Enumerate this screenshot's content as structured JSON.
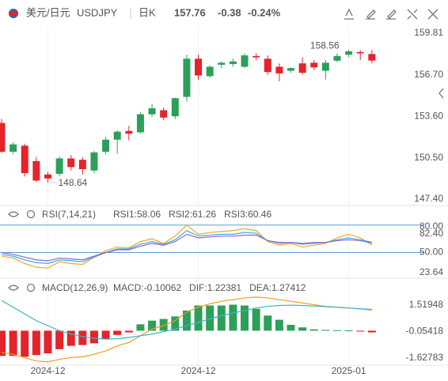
{
  "header": {
    "title": "美元/日元",
    "symbol": "USDJPY",
    "period": "日K",
    "price": "157.76",
    "change": "-0.38",
    "change_pct": "-0.24%",
    "title_color": "#e0552a",
    "quote_color": "#1f9d55"
  },
  "chart_data": [
    {
      "type": "candlestick",
      "up_color": "#2ca05a",
      "down_color": "#e5232a",
      "top_tick_color": "#e5232a",
      "categories": [
        null,
        null,
        null,
        null,
        "2024-12",
        null,
        null,
        null,
        null,
        null,
        null,
        null,
        null,
        null,
        null,
        null,
        null,
        "2024-12",
        null,
        null,
        null,
        null,
        null,
        null,
        null,
        null,
        null,
        null,
        null,
        null,
        "2025-01",
        null,
        null
      ],
      "open": [
        153.1,
        150.95,
        151.4,
        150.25,
        149.25,
        149.3,
        150.45,
        150.35,
        149.55,
        150.95,
        151.85,
        152.5,
        152.4,
        153.75,
        154.05,
        153.6,
        155.05,
        157.9,
        156.6,
        157.45,
        157.5,
        157.3,
        158.1,
        157.9,
        157.3,
        157.0,
        157.55,
        157.6,
        157.0,
        157.75,
        158.2,
        158.4,
        158.25
      ],
      "high": [
        153.4,
        151.65,
        151.55,
        150.55,
        149.45,
        150.6,
        150.7,
        150.55,
        151.0,
        152.05,
        152.55,
        152.9,
        153.9,
        154.5,
        154.25,
        155.0,
        158.2,
        158.2,
        157.4,
        157.7,
        157.9,
        158.3,
        158.3,
        158.15,
        157.55,
        157.25,
        158.0,
        157.8,
        157.8,
        158.3,
        158.56,
        158.55,
        158.55
      ],
      "low": [
        150.85,
        150.75,
        149.1,
        148.7,
        148.64,
        149.1,
        149.55,
        149.25,
        149.35,
        150.75,
        150.8,
        151.8,
        152.3,
        153.55,
        153.3,
        153.4,
        154.7,
        156.3,
        156.5,
        157.2,
        157.3,
        157.2,
        157.8,
        156.7,
        156.2,
        156.85,
        156.7,
        157.05,
        156.35,
        157.65,
        158.0,
        157.8,
        157.55
      ],
      "close": [
        150.95,
        151.5,
        149.35,
        148.8,
        148.95,
        150.45,
        149.8,
        149.65,
        150.9,
        151.85,
        152.45,
        152.3,
        153.75,
        154.2,
        153.5,
        154.95,
        157.9,
        156.65,
        157.3,
        157.6,
        157.7,
        158.15,
        158.0,
        156.9,
        156.8,
        157.2,
        156.85,
        157.25,
        157.6,
        158.1,
        158.45,
        158.3,
        157.76
      ],
      "annotations": [
        "158.56",
        "148.64"
      ],
      "ylim": [
        147.05,
        160.22
      ],
      "yticks": [
        159.81,
        {
          "value": 156.7,
          "label": "156.70"
        },
        {
          "value": 153.6,
          "label": "153.60"
        },
        {
          "value": 150.5,
          "label": "150.50"
        },
        {
          "value": 147.4,
          "label": "147.40"
        }
      ]
    },
    {
      "type": "line",
      "title": "RSI(7,14,21)",
      "level_color": "#5b9bd5",
      "levels": [
        80,
        50
      ],
      "series": [
        {
          "name": "RSI1:58.06",
          "color": "#f5a623",
          "values": [
            46,
            44,
            38,
            34,
            33,
            40,
            38,
            37,
            45,
            52,
            56,
            55,
            62,
            65,
            60,
            68,
            80,
            70,
            72,
            73,
            74,
            76,
            74,
            62,
            58,
            60,
            56,
            58,
            60,
            66,
            70,
            66,
            58.06
          ]
        },
        {
          "name": "RSI2:61.26",
          "color": "#3fa9f5",
          "values": [
            48,
            46,
            42,
            39,
            38,
            42,
            41,
            40,
            45,
            50,
            54,
            54,
            59,
            62,
            59,
            64,
            74,
            68,
            69,
            70,
            70,
            72,
            71,
            63,
            60,
            61,
            59,
            60,
            61,
            64,
            66,
            64,
            61.26
          ]
        },
        {
          "name": "RSI3:60.46",
          "color": "#8a6bbe",
          "values": [
            50,
            48,
            45,
            42,
            41,
            44,
            43,
            42,
            46,
            50,
            53,
            53,
            57,
            60,
            58,
            62,
            70,
            66,
            67,
            68,
            68,
            69,
            69,
            63,
            61,
            61,
            60,
            61,
            61,
            63,
            64,
            63,
            60.46
          ]
        }
      ],
      "ylim": [
        23.64,
        82.4
      ],
      "yticks": [
        {
          "value": 80,
          "label": "80.00"
        },
        {
          "value": 82.4,
          "label": "82.40"
        },
        {
          "value": 50,
          "label": "50.00"
        },
        23.64
      ]
    },
    {
      "type": "macd",
      "title": "MACD(12,26,9)",
      "up_color": "#2ca05a",
      "down_color": "#e5232a",
      "series": [
        {
          "name": "MACD:-0.10062",
          "color": "#a35fc2",
          "style": "bar",
          "values": [
            -1.5,
            -1.5,
            -1.55,
            -1.45,
            -1.35,
            -1.1,
            -0.9,
            -0.85,
            -0.75,
            -0.5,
            -0.25,
            -0.1,
            0.38,
            0.6,
            0.7,
            0.85,
            1.2,
            1.5,
            1.5,
            1.5,
            1.55,
            1.5,
            1.3,
            0.9,
            0.65,
            0.35,
            0.2,
            0.08,
            0.05,
            0.03,
            0.02,
            -0.05,
            -0.10062
          ]
        },
        {
          "name": "DIF:1.22381",
          "color": "#f39c12",
          "style": "line",
          "values": [
            -1.3,
            -1.4,
            -1.6,
            -1.8,
            -1.85,
            -1.7,
            -1.6,
            -1.55,
            -1.4,
            -1.2,
            -0.9,
            -0.7,
            -0.3,
            0.1,
            0.3,
            0.6,
            1.1,
            1.4,
            1.6,
            1.75,
            1.85,
            1.95,
            2.0,
            1.95,
            1.85,
            1.75,
            1.65,
            1.55,
            1.45,
            1.4,
            1.35,
            1.3,
            1.22381
          ]
        },
        {
          "name": "DEA:1.27412",
          "color": "#38b6c9",
          "style": "line",
          "values": [
            1.8,
            1.4,
            1.0,
            0.6,
            0.3,
            0.0,
            -0.2,
            -0.35,
            -0.45,
            -0.5,
            -0.48,
            -0.4,
            -0.3,
            -0.2,
            -0.05,
            0.1,
            0.3,
            0.5,
            0.7,
            0.9,
            1.05,
            1.2,
            1.35,
            1.45,
            1.5,
            1.52,
            1.5,
            1.47,
            1.43,
            1.4,
            1.35,
            1.3,
            1.27412
          ]
        }
      ],
      "ylim": [
        -2.05,
        2.04
      ],
      "yticks": [
        1.51948,
        -0.05418,
        -1.62783
      ]
    }
  ]
}
